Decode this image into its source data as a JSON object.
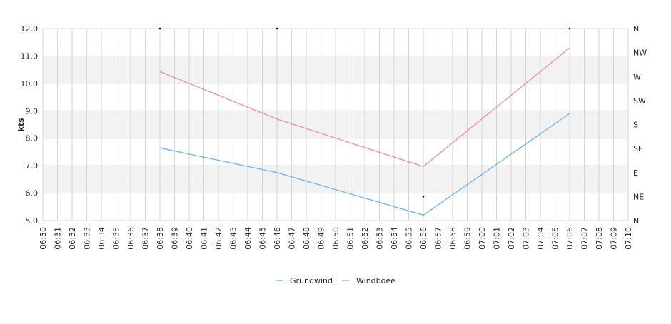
{
  "chart_data": {
    "type": "line",
    "ylabel": "kts",
    "y_ticks": [
      "5.0",
      "6.0",
      "7.0",
      "8.0",
      "9.0",
      "10.0",
      "11.0",
      "12.0"
    ],
    "ylim": [
      5.0,
      12.0
    ],
    "y2_ticks": [
      "N",
      "NE",
      "E",
      "SE",
      "S",
      "SW",
      "W",
      "NW",
      "N"
    ],
    "x_ticks": [
      "06:30",
      "06:31",
      "06:32",
      "06:33",
      "06:34",
      "06:35",
      "06:36",
      "06:37",
      "06:38",
      "06:39",
      "06:40",
      "06:41",
      "06:42",
      "06:43",
      "06:44",
      "06:45",
      "06:46",
      "06:47",
      "06:48",
      "06:49",
      "06:50",
      "06:51",
      "06:52",
      "06:53",
      "06:54",
      "06:55",
      "06:56",
      "06:57",
      "06:58",
      "06:59",
      "07:00",
      "07:01",
      "07:02",
      "07:03",
      "07:04",
      "07:05",
      "07:06",
      "07:07",
      "07:08",
      "07:09",
      "07:10"
    ],
    "grid": true,
    "legend_position": "bottom",
    "series": [
      {
        "name": "Grundwind",
        "color": "#7ab4ee",
        "points": [
          [
            "06:38",
            7.65
          ],
          [
            "06:46",
            6.75
          ],
          [
            "06:56",
            5.2
          ],
          [
            "07:06",
            8.9
          ]
        ]
      },
      {
        "name": "Windboee",
        "color": "#ee90bb",
        "points": [
          [
            "06:38",
            10.43
          ],
          [
            "06:46",
            8.7
          ],
          [
            "06:56",
            6.97
          ],
          [
            "07:06",
            11.3
          ]
        ]
      }
    ],
    "direction_markers": [
      [
        "06:38",
        "N"
      ],
      [
        "06:46",
        "N"
      ],
      [
        "06:56",
        "NE"
      ],
      [
        "07:06",
        "N"
      ]
    ]
  }
}
